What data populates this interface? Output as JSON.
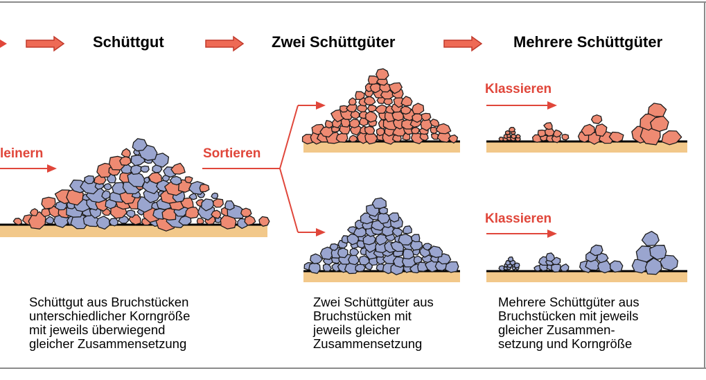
{
  "header": {
    "stage1": "Schüttgut",
    "stage2": "Zwei Schüttgüter",
    "stage3": "Mehrere Schüttgüter"
  },
  "operations": {
    "crush": "leinern",
    "sort": "Sortieren",
    "classify_top": "Klassieren",
    "classify_bottom": "Klassieren"
  },
  "captions": {
    "left": "Schüttgut aus Bruchstücken\nunterschiedlicher Korngröße\nmit jeweils überwiegend\ngleicher Zusammensetzung",
    "middle": "Zwei Schüttgüter aus\nBruchstücken mit\njeweils gleicher\nZusammensetzung",
    "right": "Mehrere Schüttgüter aus\nBruchstücken mit jeweils\ngleicher Zusammen-\nsetzung und Korngröße"
  },
  "colors": {
    "arrow": "#e0463a",
    "red_grain": "#ee8a72",
    "blue_grain": "#9aa5cf",
    "ground": "#f2c88a",
    "frame": "#8a8a8a"
  }
}
